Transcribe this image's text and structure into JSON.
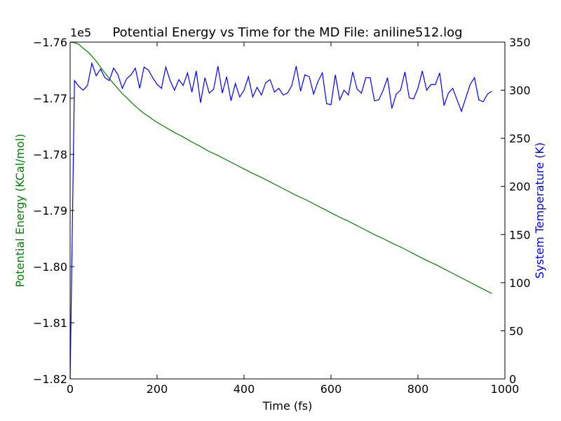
{
  "chart_data": {
    "type": "line",
    "title": "Potential Energy vs Time for the MD File: aniline512.log",
    "xlabel": "Time (fs)",
    "xlim": [
      0,
      1000
    ],
    "x_ticks": [
      "0",
      "200",
      "400",
      "600",
      "800",
      "1000"
    ],
    "left_axis": {
      "label": "Potential Energy (KCal/mol)",
      "color": "#008000",
      "offset_text": "1e5",
      "ylim": [
        -1.82,
        -1.76
      ],
      "ticks": [
        "−1.82",
        "−1.81",
        "−1.80",
        "−1.79",
        "−1.78",
        "−1.77",
        "−1.76"
      ]
    },
    "right_axis": {
      "label": "System Temperature (K)",
      "color": "#0000ff",
      "ylim": [
        0,
        350
      ],
      "ticks": [
        "0",
        "50",
        "100",
        "150",
        "200",
        "250",
        "300",
        "350"
      ]
    },
    "series": [
      {
        "name": "Potential Energy",
        "axis": "left",
        "color": "#008000",
        "x": [
          0,
          10,
          20,
          30,
          40,
          50,
          60,
          70,
          80,
          90,
          100,
          110,
          120,
          130,
          140,
          150,
          160,
          170,
          180,
          190,
          200,
          220,
          240,
          260,
          280,
          300,
          320,
          340,
          360,
          380,
          400,
          420,
          440,
          460,
          480,
          500,
          520,
          540,
          560,
          580,
          600,
          620,
          640,
          660,
          680,
          700,
          720,
          740,
          760,
          780,
          800,
          820,
          840,
          860,
          880,
          900,
          920,
          940,
          960,
          970
        ],
        "values": [
          -1.76,
          -1.7601,
          -1.7604,
          -1.7611,
          -1.7617,
          -1.7625,
          -1.7634,
          -1.7645,
          -1.7655,
          -1.7665,
          -1.7674,
          -1.7683,
          -1.7692,
          -1.7699,
          -1.7707,
          -1.7714,
          -1.7721,
          -1.7727,
          -1.7732,
          -1.7738,
          -1.7743,
          -1.7752,
          -1.7761,
          -1.7769,
          -1.7778,
          -1.7786,
          -1.7795,
          -1.7802,
          -1.781,
          -1.7818,
          -1.7826,
          -1.7834,
          -1.7841,
          -1.7849,
          -1.7857,
          -1.7865,
          -1.7873,
          -1.788,
          -1.7888,
          -1.7896,
          -1.7904,
          -1.7912,
          -1.7919,
          -1.7927,
          -1.7935,
          -1.7943,
          -1.795,
          -1.7958,
          -1.7965,
          -1.7973,
          -1.7981,
          -1.7989,
          -1.7996,
          -1.8004,
          -1.8012,
          -1.802,
          -1.8028,
          -1.8036,
          -1.8044,
          -1.8048
        ]
      },
      {
        "name": "System Temperature",
        "axis": "right",
        "color": "#0000ff",
        "x": [
          0,
          10,
          20,
          30,
          40,
          50,
          60,
          70,
          80,
          90,
          100,
          110,
          120,
          130,
          140,
          150,
          160,
          170,
          180,
          190,
          200,
          210,
          220,
          230,
          240,
          250,
          260,
          270,
          280,
          290,
          300,
          310,
          320,
          330,
          340,
          350,
          360,
          370,
          380,
          390,
          400,
          410,
          420,
          430,
          440,
          450,
          460,
          470,
          480,
          490,
          500,
          510,
          520,
          530,
          540,
          550,
          560,
          570,
          580,
          590,
          600,
          610,
          620,
          630,
          640,
          650,
          660,
          670,
          680,
          690,
          700,
          710,
          720,
          730,
          740,
          750,
          760,
          770,
          780,
          790,
          800,
          810,
          820,
          830,
          840,
          850,
          860,
          870,
          880,
          890,
          900,
          910,
          920,
          930,
          940,
          950,
          960,
          970
        ],
        "values": [
          0,
          310,
          304,
          300,
          305,
          328,
          315,
          322,
          313,
          310,
          323,
          316,
          302,
          312,
          316,
          323,
          302,
          324,
          321,
          313,
          306,
          302,
          324,
          310,
          300,
          311,
          305,
          318,
          298,
          320,
          287,
          313,
          297,
          301,
          325,
          297,
          314,
          289,
          307,
          293,
          300,
          314,
          293,
          303,
          295,
          308,
          311,
          298,
          302,
          295,
          297,
          305,
          325,
          299,
          316,
          314,
          296,
          309,
          318,
          286,
          285,
          316,
          290,
          300,
          295,
          319,
          301,
          297,
          313,
          313,
          289,
          290,
          300,
          313,
          281,
          296,
          300,
          319,
          292,
          291,
          302,
          320,
          300,
          306,
          306,
          318,
          284,
          297,
          302,
          290,
          278,
          292,
          306,
          313,
          290,
          288,
          296,
          299
        ]
      }
    ]
  }
}
